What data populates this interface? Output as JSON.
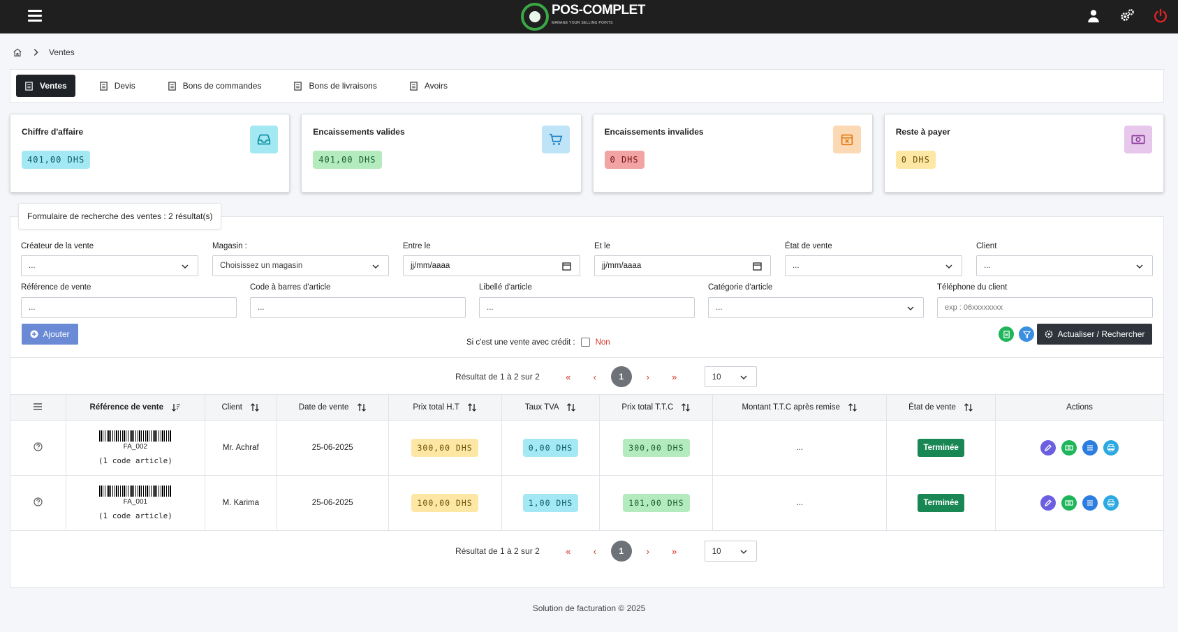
{
  "brand": {
    "name": "POS-COMPLET",
    "tagline": "MANAGE YOUR SELLING POINTS"
  },
  "breadcrumb": {
    "current": "Ventes"
  },
  "tabs": [
    {
      "label": "Ventes"
    },
    {
      "label": "Devis"
    },
    {
      "label": "Bons de commandes"
    },
    {
      "label": "Bons de livraisons"
    },
    {
      "label": "Avoirs"
    }
  ],
  "cards": [
    {
      "title": "Chiffre d'affaire",
      "value": "401,00 DHS",
      "color": "#a3e8f2",
      "icon": "inbox-icon"
    },
    {
      "title": "Encaissements valides",
      "value": "401,00 DHS",
      "color": "#b3ebbe",
      "icon": "cart-icon"
    },
    {
      "title": "Encaissements invalides",
      "value": "0 DHS",
      "color": "#f2a3a3",
      "icon": "calendar-x-icon"
    },
    {
      "title": "Reste à payer",
      "value": "0 DHS",
      "color": "#fde7a5",
      "icon": "cash-icon"
    }
  ],
  "search": {
    "title": "Formulaire de recherche des ventes : 2 résultat(s)",
    "fields": {
      "createur": {
        "label": "Créateur de la vente",
        "value": "..."
      },
      "magasin": {
        "label": "Magasin :",
        "value": "Choisissez un magasin"
      },
      "entre": {
        "label": "Entre le",
        "value": "jj/mm/aaaa"
      },
      "etle": {
        "label": "Et le",
        "value": "jj/mm/aaaa"
      },
      "etat": {
        "label": "État de vente",
        "value": "..."
      },
      "client": {
        "label": "Client",
        "value": "..."
      },
      "reference": {
        "label": "Référence de vente",
        "value": "..."
      },
      "codebarres": {
        "label": "Code à barres d'article",
        "value": "..."
      },
      "libelle": {
        "label": "Libellé d'article",
        "value": "..."
      },
      "categorie": {
        "label": "Catégorie d'article",
        "value": "..."
      },
      "telephone": {
        "label": "Téléphone du client",
        "placeholder": "exp : 06xxxxxxxx"
      }
    },
    "add_label": "Ajouter",
    "credit_label": "Si c'est une vente avec crédit :",
    "credit_value": "Non",
    "refresh_label": "Actualiser / Rechercher"
  },
  "pagination": {
    "summary": "Résultat de 1 à 2 sur 2",
    "first": "«",
    "prev": "‹",
    "page": "1",
    "next": "›",
    "last": "»",
    "per_page": "10"
  },
  "table": {
    "headers": {
      "ref": "Référence de vente",
      "client": "Client",
      "date": "Date de vente",
      "ht": "Prix total H.T",
      "tva": "Taux TVA",
      "ttc": "Prix total T.T.C",
      "remise": "Montant T.T.C après remise",
      "etat": "État de vente",
      "actions": "Actions"
    },
    "rows": [
      {
        "ref": "FA_002",
        "articles": "(1 code article)",
        "client": "Mr. Achraf",
        "date": "25-06-2025",
        "ht": "300,00 DHS",
        "tva": "0,00 DHS",
        "ttc": "300,00 DHS",
        "remise": "...",
        "etat": "Terminée"
      },
      {
        "ref": "FA_001",
        "articles": "(1 code article)",
        "client": "M. Karima",
        "date": "25-06-2025",
        "ht": "100,00 DHS",
        "tva": "1,00 DHS",
        "ttc": "101,00 DHS",
        "remise": "...",
        "etat": "Terminée"
      }
    ]
  },
  "footer": "Solution de facturation © 2025"
}
